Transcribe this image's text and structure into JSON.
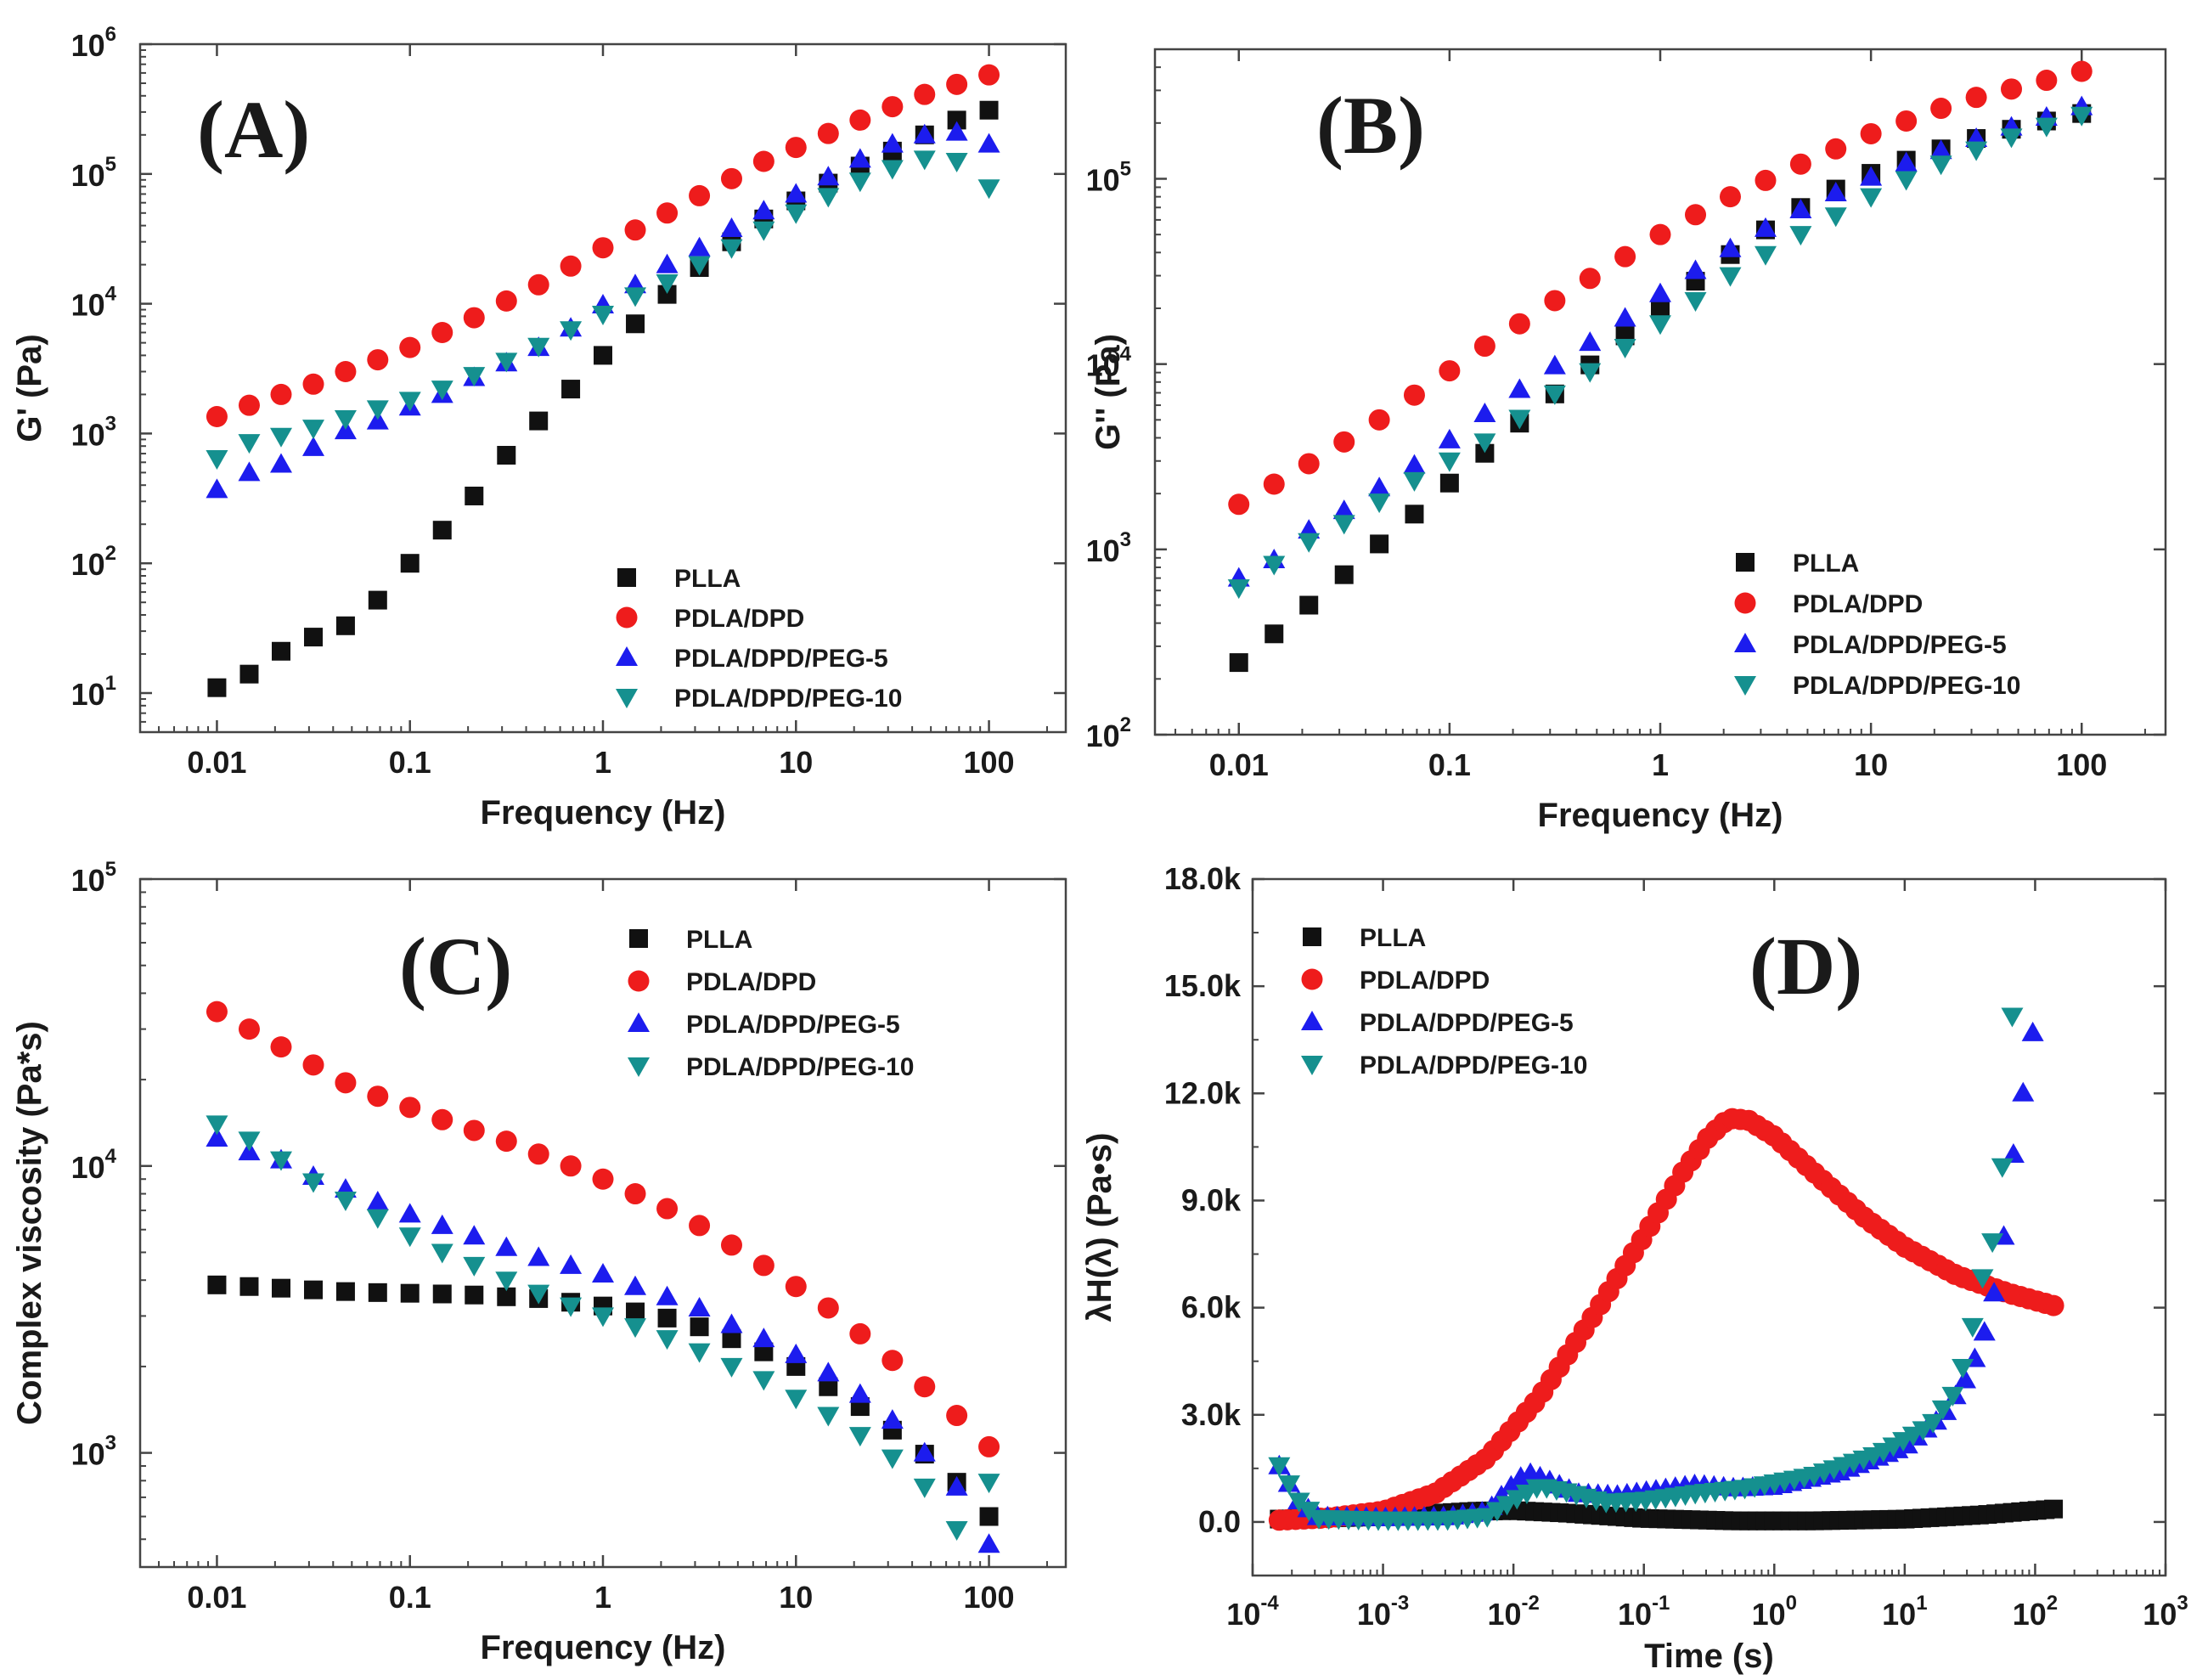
{
  "figure": {
    "description_free": true,
    "colors": {
      "PLLA": "#111111",
      "PDLA/DPD": "#ee1c1c",
      "PDLA/DPD/PEG-5": "#1c1cee",
      "PDLA/DPD/PEG-10": "#15908f"
    },
    "markers": {
      "PLLA": "square",
      "PDLA/DPD": "circle",
      "PDLA/DPD/PEG-5": "triangle-up",
      "PDLA/DPD/PEG-10": "triangle-down"
    }
  },
  "chart_data": [
    {
      "id": "A",
      "panel_label": "(A)",
      "type": "scatter",
      "xscale": "log",
      "yscale": "log",
      "xlabel": "Frequency (Hz)",
      "ylabel": "G' (Pa)",
      "xlim": [
        0.004,
        250
      ],
      "ylim": [
        5,
        1000000
      ],
      "xticks": [
        {
          "v": 0.01,
          "label": "0.01"
        },
        {
          "v": 0.1,
          "label": "0.1"
        },
        {
          "v": 1,
          "label": "1"
        },
        {
          "v": 10,
          "label": "10"
        },
        {
          "v": 100,
          "label": "100"
        }
      ],
      "yticks": [
        {
          "v": 10,
          "base": "10",
          "exp": "1"
        },
        {
          "v": 100,
          "base": "10",
          "exp": "2"
        },
        {
          "v": 1000,
          "base": "10",
          "exp": "3"
        },
        {
          "v": 10000,
          "base": "10",
          "exp": "4"
        },
        {
          "v": 100000,
          "base": "10",
          "exp": "5"
        },
        {
          "v": 1000000,
          "base": "10",
          "exp": "6"
        }
      ],
      "legend_position": "bottom-right",
      "x": [
        0.01,
        0.0147,
        0.0215,
        0.0316,
        0.0464,
        0.0681,
        0.1,
        0.147,
        0.215,
        0.316,
        0.464,
        0.681,
        1,
        1.47,
        2.15,
        3.16,
        4.64,
        6.81,
        10,
        14.7,
        21.5,
        31.6,
        46.4,
        68.1,
        100
      ],
      "series": [
        {
          "name": "PLLA",
          "values": [
            11,
            14,
            21,
            27,
            33,
            52,
            100,
            180,
            330,
            680,
            1250,
            2200,
            4000,
            7000,
            11800,
            19000,
            30000,
            45000,
            62000,
            85000,
            115000,
            150000,
            200000,
            260000,
            310000
          ]
        },
        {
          "name": "PDLA/DPD",
          "values": [
            1350,
            1650,
            2000,
            2400,
            3000,
            3700,
            4600,
            6000,
            7800,
            10500,
            14000,
            19500,
            27000,
            37000,
            50000,
            68000,
            92000,
            125000,
            160000,
            205000,
            260000,
            330000,
            410000,
            490000,
            580000
          ]
        },
        {
          "name": "PDLA/DPD/PEG-5",
          "values": [
            370,
            500,
            580,
            780,
            1050,
            1250,
            1600,
            2000,
            2700,
            3500,
            4600,
            6500,
            9800,
            14000,
            20000,
            27000,
            38000,
            52000,
            70000,
            95000,
            130000,
            170000,
            200000,
            210000,
            170000
          ]
        },
        {
          "name": "PDLA/DPD/PEG-10",
          "values": [
            640,
            850,
            950,
            1100,
            1300,
            1550,
            1800,
            2200,
            2800,
            3600,
            4700,
            6300,
            8300,
            11500,
            14500,
            20000,
            27000,
            37000,
            50000,
            67000,
            88000,
            110000,
            130000,
            125000,
            78000
          ]
        }
      ]
    },
    {
      "id": "B",
      "panel_label": "(B)",
      "type": "scatter",
      "xscale": "log",
      "yscale": "log",
      "xlabel": "Frequency (Hz)",
      "ylabel": "G'' (Pa)",
      "xlim": [
        0.004,
        250
      ],
      "ylim": [
        100,
        500000
      ],
      "xticks": [
        {
          "v": 0.01,
          "label": "0.01"
        },
        {
          "v": 0.1,
          "label": "0.1"
        },
        {
          "v": 1,
          "label": "1"
        },
        {
          "v": 10,
          "label": "10"
        },
        {
          "v": 100,
          "label": "100"
        }
      ],
      "yticks": [
        {
          "v": 100,
          "base": "10",
          "exp": "2"
        },
        {
          "v": 1000,
          "base": "10",
          "exp": "3"
        },
        {
          "v": 10000,
          "base": "10",
          "exp": "4"
        },
        {
          "v": 100000,
          "base": "10",
          "exp": "5"
        }
      ],
      "legend_position": "bottom-right",
      "x": [
        0.01,
        0.0147,
        0.0215,
        0.0316,
        0.0464,
        0.0681,
        0.1,
        0.147,
        0.215,
        0.316,
        0.464,
        0.681,
        1,
        1.47,
        2.15,
        3.16,
        4.64,
        6.81,
        10,
        14.7,
        21.5,
        31.6,
        46.4,
        68.1,
        100
      ],
      "series": [
        {
          "name": "PLLA",
          "values": [
            245,
            350,
            500,
            730,
            1070,
            1550,
            2280,
            3300,
            4800,
            6900,
            9900,
            14200,
            20000,
            28000,
            39000,
            53000,
            70000,
            88000,
            107000,
            126000,
            145000,
            165000,
            185000,
            205000,
            225000
          ]
        },
        {
          "name": "PDLA/DPD",
          "values": [
            1750,
            2250,
            2900,
            3800,
            5000,
            6800,
            9200,
            12500,
            16500,
            22000,
            29000,
            38000,
            50000,
            64000,
            80000,
            98000,
            120000,
            145000,
            175000,
            205000,
            240000,
            275000,
            305000,
            340000,
            380000
          ]
        },
        {
          "name": "PDLA/DPD/PEG-5",
          "values": [
            700,
            880,
            1270,
            1620,
            2150,
            2850,
            3900,
            5400,
            7300,
            9800,
            13100,
            17700,
            24000,
            32000,
            42000,
            54000,
            68000,
            84000,
            102000,
            122000,
            142000,
            165000,
            190000,
            215000,
            245000
          ]
        },
        {
          "name": "PDLA/DPD/PEG-10",
          "values": [
            620,
            830,
            1100,
            1380,
            1800,
            2350,
            3000,
            3800,
            5100,
            6900,
            9100,
            12300,
            16500,
            22000,
            30000,
            39000,
            50000,
            63000,
            80000,
            99000,
            120000,
            143000,
            168000,
            192000,
            220000
          ]
        }
      ]
    },
    {
      "id": "C",
      "panel_label": "(C)",
      "type": "scatter",
      "xscale": "log",
      "yscale": "log",
      "xlabel": "Frequency (Hz)",
      "ylabel": "Complex viscosity (Pa*s)",
      "xlim": [
        0.004,
        250
      ],
      "ylim": [
        400,
        100000
      ],
      "xticks": [
        {
          "v": 0.01,
          "label": "0.01"
        },
        {
          "v": 0.1,
          "label": "0.1"
        },
        {
          "v": 1,
          "label": "1"
        },
        {
          "v": 10,
          "label": "10"
        },
        {
          "v": 100,
          "label": "100"
        }
      ],
      "yticks": [
        {
          "v": 1000,
          "base": "10",
          "exp": "3"
        },
        {
          "v": 10000,
          "base": "10",
          "exp": "4"
        },
        {
          "v": 100000,
          "base": "10",
          "exp": "5"
        }
      ],
      "legend_position": "top-right",
      "x": [
        0.01,
        0.0147,
        0.0215,
        0.0316,
        0.0464,
        0.0681,
        0.1,
        0.147,
        0.215,
        0.316,
        0.464,
        0.681,
        1,
        1.47,
        2.15,
        3.16,
        4.64,
        6.81,
        10,
        14.7,
        21.5,
        31.6,
        46.4,
        68.1,
        100
      ],
      "series": [
        {
          "name": "PLLA",
          "values": [
            3850,
            3800,
            3750,
            3700,
            3650,
            3620,
            3600,
            3580,
            3550,
            3500,
            3450,
            3350,
            3250,
            3100,
            2950,
            2750,
            2500,
            2250,
            2000,
            1700,
            1450,
            1200,
            990,
            790,
            600
          ]
        },
        {
          "name": "PDLA/DPD",
          "values": [
            34500,
            30000,
            26000,
            22500,
            19500,
            17500,
            16000,
            14500,
            13300,
            12200,
            11000,
            10000,
            9000,
            8000,
            7100,
            6200,
            5300,
            4500,
            3800,
            3200,
            2600,
            2100,
            1700,
            1350,
            1050
          ]
        },
        {
          "name": "PDLA/DPD/PEG-5",
          "values": [
            12500,
            11200,
            10500,
            9200,
            8300,
            7500,
            6800,
            6200,
            5700,
            5200,
            4800,
            4500,
            4200,
            3800,
            3500,
            3200,
            2800,
            2500,
            2200,
            1900,
            1600,
            1300,
            1000,
            760,
            480
          ]
        },
        {
          "name": "PDLA/DPD/PEG-10",
          "values": [
            14000,
            12300,
            10500,
            8800,
            7600,
            6600,
            5700,
            5000,
            4500,
            4000,
            3600,
            3250,
            3000,
            2750,
            2500,
            2250,
            2000,
            1800,
            1550,
            1350,
            1150,
            960,
            760,
            540,
            790
          ]
        }
      ]
    },
    {
      "id": "D",
      "panel_label": "(D)",
      "type": "scatter",
      "xscale": "log",
      "yscale": "linear",
      "xlabel": "Time (s)",
      "ylabel": "λH(λ) (Pa•s)",
      "xlim": [
        0.0001,
        1000
      ],
      "ylim": [
        -1500,
        18000
      ],
      "xticks": [
        {
          "v": 0.0001,
          "base": "10",
          "exp": "-4"
        },
        {
          "v": 0.001,
          "base": "10",
          "exp": "-3"
        },
        {
          "v": 0.01,
          "base": "10",
          "exp": "-2"
        },
        {
          "v": 0.1,
          "base": "10",
          "exp": "-1"
        },
        {
          "v": 1,
          "base": "10",
          "exp": "0"
        },
        {
          "v": 10,
          "base": "10",
          "exp": "1"
        },
        {
          "v": 100,
          "base": "10",
          "exp": "2"
        },
        {
          "v": 1000,
          "base": "10",
          "exp": "3"
        }
      ],
      "yticks": [
        {
          "v": 0,
          "label": "0.0"
        },
        {
          "v": 3000,
          "label": "3.0k"
        },
        {
          "v": 6000,
          "label": "6.0k"
        },
        {
          "v": 9000,
          "label": "9.0k"
        },
        {
          "v": 12000,
          "label": "12.0k"
        },
        {
          "v": 15000,
          "label": "15.0k"
        },
        {
          "v": 18000,
          "label": "18.0k"
        }
      ],
      "legend_position": "top-left",
      "x_range": [
        0.00016,
        160
      ],
      "series": [
        {
          "name": "PLLA",
          "points": 96,
          "knots": [
            [
              -3.8,
              80
            ],
            [
              -3.0,
              150
            ],
            [
              -2.3,
              300
            ],
            [
              -2.0,
              320
            ],
            [
              -1.6,
              250
            ],
            [
              -1.0,
              100
            ],
            [
              -0.3,
              30
            ],
            [
              0.3,
              30
            ],
            [
              1.0,
              80
            ],
            [
              1.6,
              200
            ],
            [
              2.2,
              380
            ]
          ]
        },
        {
          "name": "PDLA/DPD",
          "points": 96,
          "knots": [
            [
              -3.8,
              50
            ],
            [
              -3.4,
              120
            ],
            [
              -3.0,
              300
            ],
            [
              -2.6,
              800
            ],
            [
              -2.2,
              1800
            ],
            [
              -1.8,
              3500
            ],
            [
              -1.4,
              5700
            ],
            [
              -1.0,
              8000
            ],
            [
              -0.7,
              9800
            ],
            [
              -0.5,
              10800
            ],
            [
              -0.35,
              11300
            ],
            [
              -0.2,
              11250
            ],
            [
              0,
              10800
            ],
            [
              0.3,
              9800
            ],
            [
              0.7,
              8500
            ],
            [
              1.0,
              7700
            ],
            [
              1.4,
              6900
            ],
            [
              1.8,
              6400
            ],
            [
              2.2,
              6000
            ]
          ]
        },
        {
          "name": "PDLA/DPD/PEG-5",
          "points": 82,
          "knots": [
            [
              -3.8,
              1600
            ],
            [
              -3.65,
              600
            ],
            [
              -3.5,
              150
            ],
            [
              -3.0,
              120
            ],
            [
              -2.5,
              150
            ],
            [
              -2.2,
              300
            ],
            [
              -2.05,
              900
            ],
            [
              -1.9,
              1400
            ],
            [
              -1.75,
              1200
            ],
            [
              -1.5,
              800
            ],
            [
              -1.2,
              750
            ],
            [
              -0.9,
              900
            ],
            [
              -0.6,
              1050
            ],
            [
              -0.3,
              950
            ],
            [
              0,
              1000
            ],
            [
              0.5,
              1400
            ],
            [
              1.0,
              2100
            ],
            [
              1.3,
              3000
            ],
            [
              1.5,
              4200
            ],
            [
              1.65,
              5700
            ],
            [
              1.75,
              7700
            ],
            [
              1.85,
              10800
            ],
            [
              1.95,
              12900
            ],
            [
              2.05,
              15400
            ]
          ]
        },
        {
          "name": "PDLA/DPD/PEG-10",
          "points": 80,
          "knots": [
            [
              -3.8,
              1600
            ],
            [
              -3.65,
              600
            ],
            [
              -3.5,
              100
            ],
            [
              -3.0,
              50
            ],
            [
              -2.5,
              60
            ],
            [
              -2.2,
              150
            ],
            [
              -2.0,
              600
            ],
            [
              -1.8,
              1000
            ],
            [
              -1.6,
              850
            ],
            [
              -1.3,
              550
            ],
            [
              -1.0,
              600
            ],
            [
              -0.6,
              800
            ],
            [
              -0.2,
              950
            ],
            [
              0.3,
              1300
            ],
            [
              0.8,
              1900
            ],
            [
              1.2,
              2700
            ],
            [
              1.4,
              3700
            ],
            [
              1.5,
              5100
            ],
            [
              1.6,
              6900
            ],
            [
              1.7,
              8200
            ],
            [
              1.75,
              10000
            ],
            [
              1.8,
              12600
            ],
            [
              1.85,
              15800
            ]
          ]
        }
      ]
    }
  ]
}
